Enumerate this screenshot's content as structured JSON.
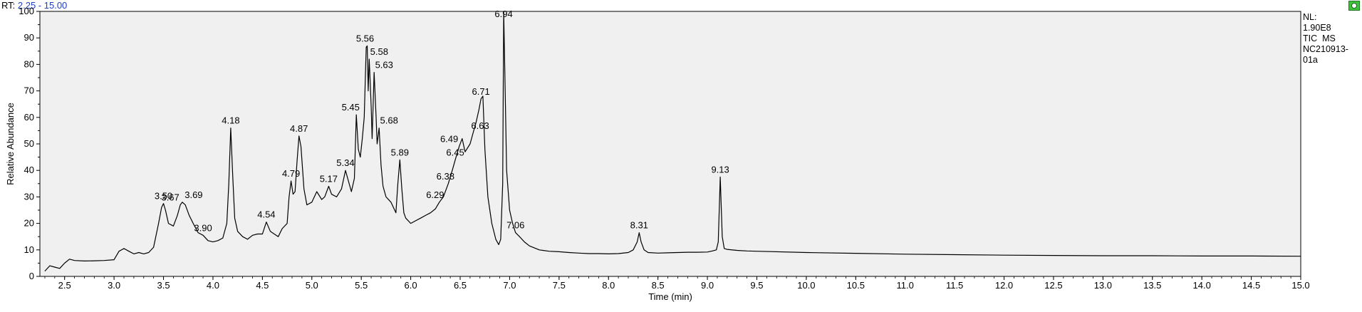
{
  "header": {
    "rt_label": "RT:",
    "rt_range": "2.25 - 15.00"
  },
  "info": {
    "nl_label": "NL:",
    "nl_value": "1.90E8",
    "scan_type": "TIC  MS",
    "file_line1": "NC210913-",
    "file_line2": "01a"
  },
  "colors": {
    "plot_background": "#f0f0f0",
    "trace": "#000000",
    "annotation_mark": "#2e9e2e",
    "rt_range_text": "#1c3fbf"
  },
  "chart_data": {
    "type": "line",
    "xlabel": "Time (min)",
    "ylabel": "Relative Abundance",
    "xlim": [
      2.25,
      15.0
    ],
    "ylim": [
      0,
      100
    ],
    "x_ticks": [
      "2.5",
      "3.0",
      "3.5",
      "4.0",
      "4.5",
      "5.0",
      "5.5",
      "6.0",
      "6.5",
      "7.0",
      "7.5",
      "8.0",
      "8.5",
      "9.0",
      "9.5",
      "10.0",
      "10.5",
      "11.0",
      "11.5",
      "12.0",
      "12.5",
      "13.0",
      "13.5",
      "14.0",
      "14.5",
      "15.0"
    ],
    "y_ticks": [
      "0",
      "10",
      "20",
      "30",
      "40",
      "50",
      "60",
      "70",
      "80",
      "90",
      "100"
    ],
    "grid": false,
    "series": [
      {
        "x": [
          2.3,
          2.35,
          2.4,
          2.45,
          2.5,
          2.55,
          2.6,
          2.7,
          2.8,
          2.9,
          3.0,
          3.05,
          3.1,
          3.15,
          3.2,
          3.25,
          3.3,
          3.35,
          3.4,
          3.45,
          3.48,
          3.5,
          3.52,
          3.55,
          3.6,
          3.64,
          3.67,
          3.69,
          3.72,
          3.76,
          3.8,
          3.85,
          3.9,
          3.95,
          4.0,
          4.05,
          4.1,
          4.14,
          4.16,
          4.18,
          4.2,
          4.22,
          4.25,
          4.3,
          4.35,
          4.4,
          4.45,
          4.5,
          4.54,
          4.58,
          4.62,
          4.66,
          4.7,
          4.75,
          4.77,
          4.79,
          4.81,
          4.83,
          4.85,
          4.87,
          4.89,
          4.92,
          4.95,
          5.0,
          5.05,
          5.1,
          5.13,
          5.17,
          5.2,
          5.25,
          5.3,
          5.34,
          5.37,
          5.4,
          5.43,
          5.45,
          5.47,
          5.49,
          5.51,
          5.53,
          5.55,
          5.56,
          5.57,
          5.58,
          5.6,
          5.61,
          5.63,
          5.65,
          5.66,
          5.68,
          5.7,
          5.72,
          5.75,
          5.8,
          5.85,
          5.87,
          5.89,
          5.91,
          5.93,
          5.95,
          6.0,
          6.05,
          6.1,
          6.15,
          6.2,
          6.25,
          6.29,
          6.33,
          6.38,
          6.42,
          6.45,
          6.49,
          6.52,
          6.55,
          6.6,
          6.63,
          6.66,
          6.69,
          6.71,
          6.73,
          6.75,
          6.78,
          6.82,
          6.86,
          6.89,
          6.91,
          6.93,
          6.94,
          6.95,
          6.97,
          7.0,
          7.03,
          7.06,
          7.1,
          7.15,
          7.2,
          7.3,
          7.4,
          7.5,
          7.6,
          7.7,
          7.8,
          7.9,
          8.0,
          8.1,
          8.2,
          8.25,
          8.29,
          8.31,
          8.33,
          8.36,
          8.4,
          8.5,
          8.6,
          8.7,
          8.8,
          8.9,
          9.0,
          9.05,
          9.09,
          9.11,
          9.13,
          9.15,
          9.17,
          9.2,
          9.3,
          9.4,
          9.5,
          10.0,
          10.5,
          11.0,
          11.5,
          12.0,
          12.5,
          13.0,
          13.5,
          14.0,
          14.5,
          15.0
        ],
        "values": [
          2.0,
          4.0,
          3.5,
          3.0,
          5.0,
          6.5,
          6.0,
          5.8,
          5.9,
          6.0,
          6.3,
          9.5,
          10.5,
          9.5,
          8.5,
          9.0,
          8.5,
          9.0,
          11.0,
          20.0,
          26.0,
          27.5,
          25.0,
          20.0,
          19.0,
          23.0,
          27.0,
          28.0,
          27.0,
          23.0,
          20.0,
          16.5,
          15.5,
          13.5,
          13.0,
          13.5,
          14.5,
          20.0,
          35.0,
          56.0,
          38.0,
          22.0,
          17.0,
          15.0,
          14.0,
          15.5,
          16.0,
          16.0,
          20.5,
          17.0,
          16.0,
          15.0,
          18.0,
          20.0,
          30.0,
          36.0,
          31.0,
          32.0,
          43.0,
          53.0,
          49.0,
          33.0,
          27.0,
          28.0,
          32.0,
          29.0,
          30.0,
          34.0,
          31.0,
          30.0,
          33.0,
          40.0,
          36.0,
          32.0,
          37.0,
          61.0,
          48.0,
          45.0,
          52.0,
          60.0,
          86.5,
          87.0,
          70.0,
          82.0,
          64.0,
          52.0,
          77.0,
          60.0,
          50.0,
          56.0,
          42.0,
          34.0,
          30.0,
          28.0,
          24.0,
          35.0,
          44.0,
          33.0,
          24.0,
          22.0,
          20.0,
          21.0,
          22.0,
          23.0,
          24.0,
          25.5,
          28.0,
          30.0,
          35.0,
          40.0,
          44.0,
          49.0,
          52.0,
          47.0,
          50.0,
          54.0,
          58.0,
          63.0,
          67.0,
          68.0,
          48.0,
          30.0,
          20.0,
          14.0,
          12.0,
          14.0,
          35.0,
          100.0,
          80.0,
          40.0,
          25.0,
          20.0,
          16.5,
          15.0,
          13.0,
          11.5,
          10.0,
          9.5,
          9.3,
          9.0,
          8.8,
          8.6,
          8.6,
          8.5,
          8.6,
          9.0,
          10.0,
          13.0,
          16.5,
          13.0,
          10.0,
          9.0,
          8.8,
          8.9,
          9.0,
          9.1,
          9.1,
          9.2,
          9.6,
          10.0,
          13.0,
          37.5,
          15.0,
          10.5,
          10.2,
          9.8,
          9.6,
          9.5,
          9.0,
          8.7,
          8.4,
          8.2,
          8.0,
          7.9,
          7.8,
          7.8,
          7.7,
          7.7,
          7.6
        ]
      }
    ],
    "annotations": [
      {
        "x": 3.5,
        "label": "3.50"
      },
      {
        "x": 3.67,
        "label": "3.67"
      },
      {
        "x": 3.69,
        "label": "3.69"
      },
      {
        "x": 3.9,
        "label": "3.90"
      },
      {
        "x": 4.18,
        "label": "4.18"
      },
      {
        "x": 4.54,
        "label": "4.54"
      },
      {
        "x": 4.79,
        "label": "4.79"
      },
      {
        "x": 4.87,
        "label": "4.87"
      },
      {
        "x": 5.17,
        "label": "5.17"
      },
      {
        "x": 5.34,
        "label": "5.34"
      },
      {
        "x": 5.45,
        "label": "5.45"
      },
      {
        "x": 5.56,
        "label": "5.56"
      },
      {
        "x": 5.58,
        "label": "5.58"
      },
      {
        "x": 5.63,
        "label": "5.63"
      },
      {
        "x": 5.68,
        "label": "5.68"
      },
      {
        "x": 5.89,
        "label": "5.89"
      },
      {
        "x": 6.29,
        "label": "6.29"
      },
      {
        "x": 6.38,
        "label": "6.38"
      },
      {
        "x": 6.45,
        "label": "6.45"
      },
      {
        "x": 6.49,
        "label": "6.49"
      },
      {
        "x": 6.63,
        "label": "6.63"
      },
      {
        "x": 6.71,
        "label": "6.71"
      },
      {
        "x": 6.94,
        "label": "6.94"
      },
      {
        "x": 7.06,
        "label": "7.06"
      },
      {
        "x": 8.31,
        "label": "8.31"
      },
      {
        "x": 9.13,
        "label": "9.13"
      }
    ]
  }
}
